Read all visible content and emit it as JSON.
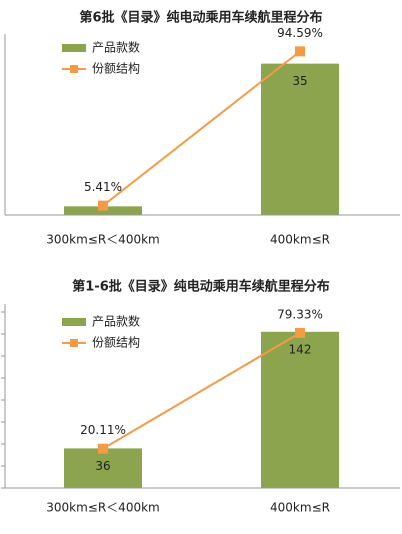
{
  "chart_data": [
    {
      "type": "bar",
      "title": "第6批《目录》纯电动乘用车续航里程分布",
      "categories": [
        "300km≤R＜400km",
        "400km≤R"
      ],
      "series": [
        {
          "name": "产品款数",
          "color": "#8ba44d",
          "values": [
            2,
            35
          ]
        },
        {
          "name": "份额结构",
          "color": "#f59a45",
          "values": [
            5.41,
            94.59
          ],
          "value_labels": [
            "5.41%",
            "94.59%"
          ],
          "axis": "y2",
          "type": "line"
        }
      ],
      "ylim": [
        0,
        40
      ],
      "y2lim": [
        0,
        100
      ]
    },
    {
      "type": "bar",
      "title": "第1-6批《目录》纯电动乘用车续航里程分布",
      "categories": [
        "300km≤R＜400km",
        "400km≤R"
      ],
      "series": [
        {
          "name": "产品款数",
          "color": "#8ba44d",
          "values": [
            36,
            142
          ]
        },
        {
          "name": "份额结构",
          "color": "#f59a45",
          "values": [
            20.11,
            79.33
          ],
          "value_labels": [
            "20.11%",
            "79.33%"
          ],
          "axis": "y2",
          "type": "line"
        }
      ],
      "ylim": [
        0,
        160
      ],
      "yticks": [
        0,
        20,
        40,
        60,
        80,
        100,
        120,
        140,
        160
      ],
      "y2lim": [
        0,
        90
      ]
    }
  ]
}
